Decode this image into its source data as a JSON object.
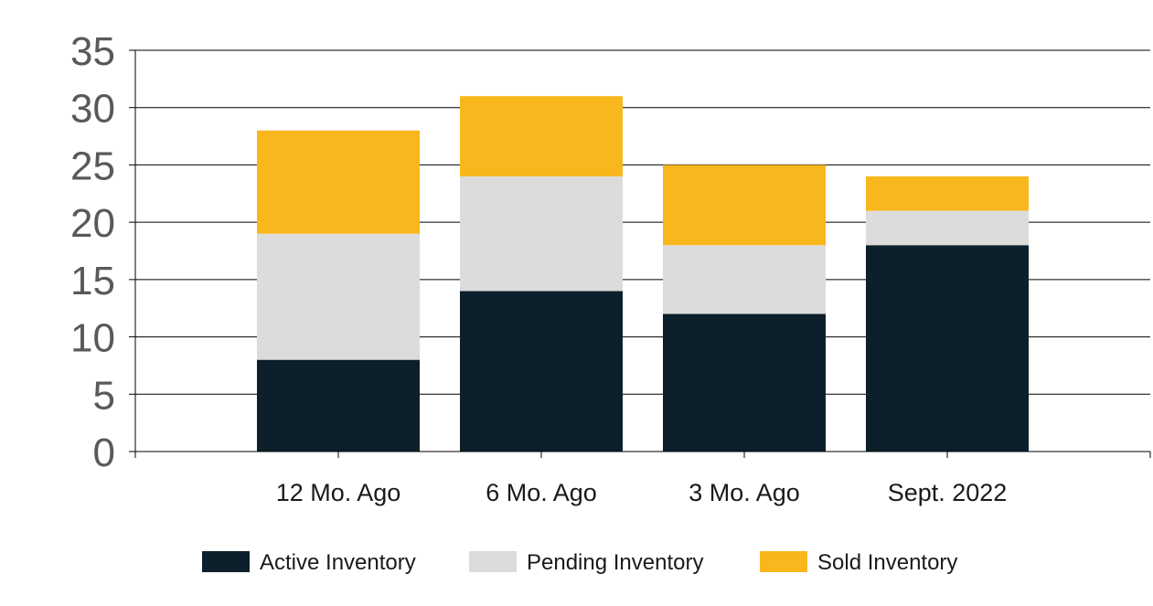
{
  "chart_data": {
    "type": "bar",
    "stacked": true,
    "categories": [
      "12 Mo. Ago",
      "6 Mo. Ago",
      "3 Mo. Ago",
      "Sept. 2022"
    ],
    "series": [
      {
        "name": "Active Inventory",
        "values": [
          8,
          14,
          12,
          18
        ],
        "color": "#0d1f2a"
      },
      {
        "name": "Pending Inventory",
        "values": [
          11,
          10,
          6,
          3
        ],
        "color": "#dcdcdc"
      },
      {
        "name": "Sold Inventory",
        "values": [
          9,
          7,
          7,
          3
        ],
        "color": "#f8b71c"
      }
    ],
    "ylim": [
      0,
      35
    ],
    "yticks": [
      "0",
      "5",
      "10",
      "15",
      "20",
      "25",
      "30",
      "35"
    ],
    "grid": true,
    "legend_position": "bottom"
  }
}
